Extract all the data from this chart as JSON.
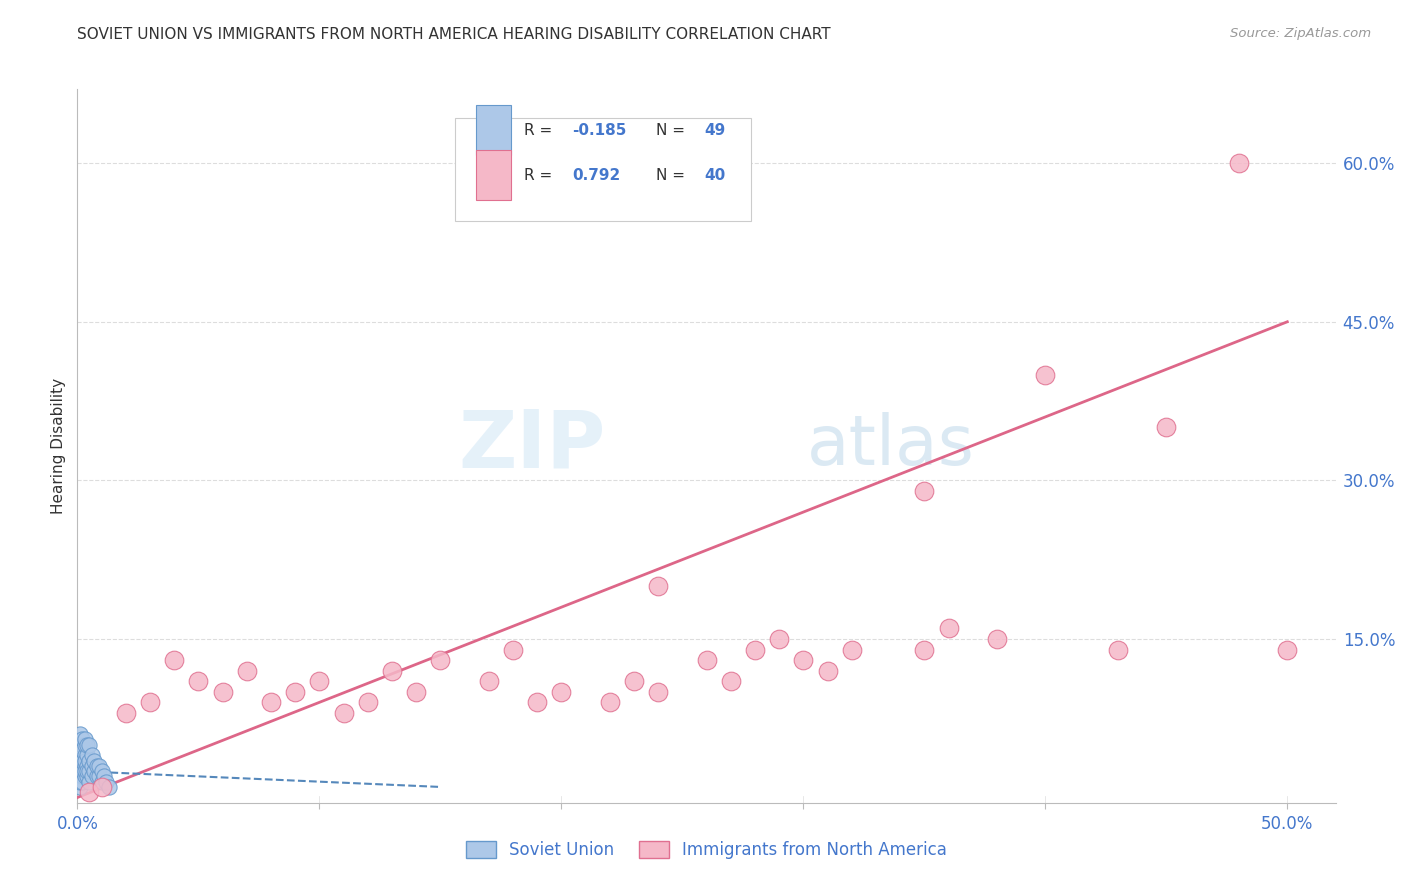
{
  "title": "SOVIET UNION VS IMMIGRANTS FROM NORTH AMERICA HEARING DISABILITY CORRELATION CHART",
  "source": "Source: ZipAtlas.com",
  "ylabel": "Hearing Disability",
  "xlim": [
    0.0,
    0.52
  ],
  "ylim": [
    -0.005,
    0.67
  ],
  "blue_R": -0.185,
  "blue_N": 49,
  "pink_R": 0.792,
  "pink_N": 40,
  "blue_color": "#adc8e8",
  "blue_edge": "#6699cc",
  "pink_color": "#f5b8c8",
  "pink_edge": "#e07090",
  "blue_line_color": "#5588bb",
  "pink_line_color": "#dd6688",
  "legend_label_blue": "Soviet Union",
  "legend_label_pink": "Immigrants from North America",
  "watermark_zip": "ZIP",
  "watermark_atlas": "atlas",
  "grid_color": "#dddddd",
  "soviet_x": [
    0.001,
    0.001,
    0.001,
    0.001,
    0.001,
    0.001,
    0.001,
    0.001,
    0.001,
    0.001,
    0.002,
    0.002,
    0.002,
    0.002,
    0.002,
    0.002,
    0.002,
    0.002,
    0.002,
    0.003,
    0.003,
    0.003,
    0.003,
    0.003,
    0.003,
    0.003,
    0.004,
    0.004,
    0.004,
    0.004,
    0.004,
    0.005,
    0.005,
    0.005,
    0.005,
    0.006,
    0.006,
    0.006,
    0.007,
    0.007,
    0.008,
    0.008,
    0.009,
    0.009,
    0.01,
    0.01,
    0.011,
    0.012,
    0.013
  ],
  "soviet_y": [
    0.01,
    0.02,
    0.03,
    0.04,
    0.05,
    0.06,
    0.035,
    0.025,
    0.015,
    0.045,
    0.02,
    0.03,
    0.04,
    0.05,
    0.025,
    0.035,
    0.045,
    0.015,
    0.055,
    0.02,
    0.03,
    0.04,
    0.05,
    0.025,
    0.035,
    0.055,
    0.02,
    0.03,
    0.04,
    0.05,
    0.025,
    0.015,
    0.025,
    0.035,
    0.05,
    0.02,
    0.03,
    0.04,
    0.025,
    0.035,
    0.02,
    0.03,
    0.02,
    0.03,
    0.015,
    0.025,
    0.02,
    0.015,
    0.01
  ],
  "immigrants_x": [
    0.005,
    0.01,
    0.02,
    0.03,
    0.04,
    0.05,
    0.06,
    0.07,
    0.08,
    0.09,
    0.1,
    0.11,
    0.12,
    0.13,
    0.14,
    0.15,
    0.17,
    0.18,
    0.19,
    0.2,
    0.22,
    0.23,
    0.24,
    0.26,
    0.27,
    0.28,
    0.29,
    0.3,
    0.31,
    0.32,
    0.35,
    0.36,
    0.38,
    0.4,
    0.43,
    0.45,
    0.5,
    0.24,
    0.35,
    0.48
  ],
  "immigrants_y": [
    0.005,
    0.01,
    0.08,
    0.09,
    0.13,
    0.11,
    0.1,
    0.12,
    0.09,
    0.1,
    0.11,
    0.08,
    0.09,
    0.12,
    0.1,
    0.13,
    0.11,
    0.14,
    0.09,
    0.1,
    0.09,
    0.11,
    0.1,
    0.13,
    0.11,
    0.14,
    0.15,
    0.13,
    0.12,
    0.14,
    0.14,
    0.16,
    0.15,
    0.4,
    0.14,
    0.35,
    0.14,
    0.2,
    0.29,
    0.6
  ],
  "pink_trend_x": [
    0.0,
    0.5
  ],
  "pink_trend_y": [
    0.0,
    0.45
  ],
  "blue_trend_x": [
    0.0,
    0.15
  ],
  "blue_trend_y": [
    0.025,
    0.01
  ]
}
